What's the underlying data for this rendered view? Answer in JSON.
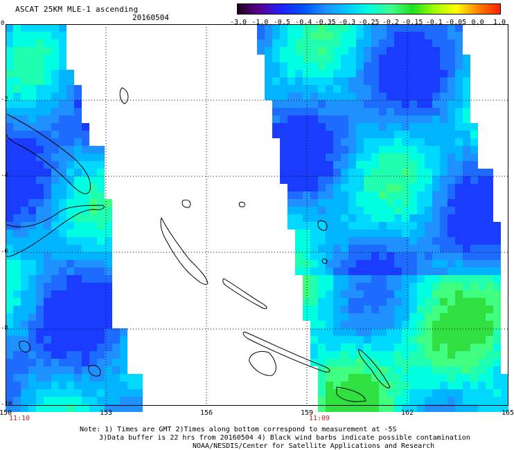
{
  "header": {
    "title": "ASCAT 25KM MLE-1 ascending",
    "date": "20160504"
  },
  "colorbar": {
    "labels": [
      "-3.0",
      "-1.0",
      "-0.5",
      "-0.4",
      "-0.35",
      "-0.3",
      "-0.25",
      "-0.2",
      "-0.15",
      "-0.1",
      "-0.05",
      "0.0",
      "1.0"
    ],
    "colors": [
      "#200020",
      "#5a0090",
      "#2020ff",
      "#0050ff",
      "#1e90ff",
      "#00c8ff",
      "#00ffe0",
      "#40ff90",
      "#20e020",
      "#a0ff00",
      "#ffff00",
      "#ff8000",
      "#ff2000"
    ]
  },
  "axes": {
    "lon_labels": [
      "150",
      "153",
      "156",
      "159",
      "162",
      "165"
    ],
    "lat_labels": [
      "0",
      "-2",
      "-4",
      "-6",
      "-8",
      "-10"
    ]
  },
  "times": {
    "left_swath": "11:10",
    "right_swath": "11:09"
  },
  "notes": {
    "line1": "Note: 1) Times are GMT 2)Times along bottom correspond to measurement at -5S",
    "line2": "3)Data buffer is 22 hrs from 20160504 4) Black wind barbs indicate possible contamination",
    "line3": "NOAA/NESDIS/Center for Satellite Applications and Research"
  }
}
